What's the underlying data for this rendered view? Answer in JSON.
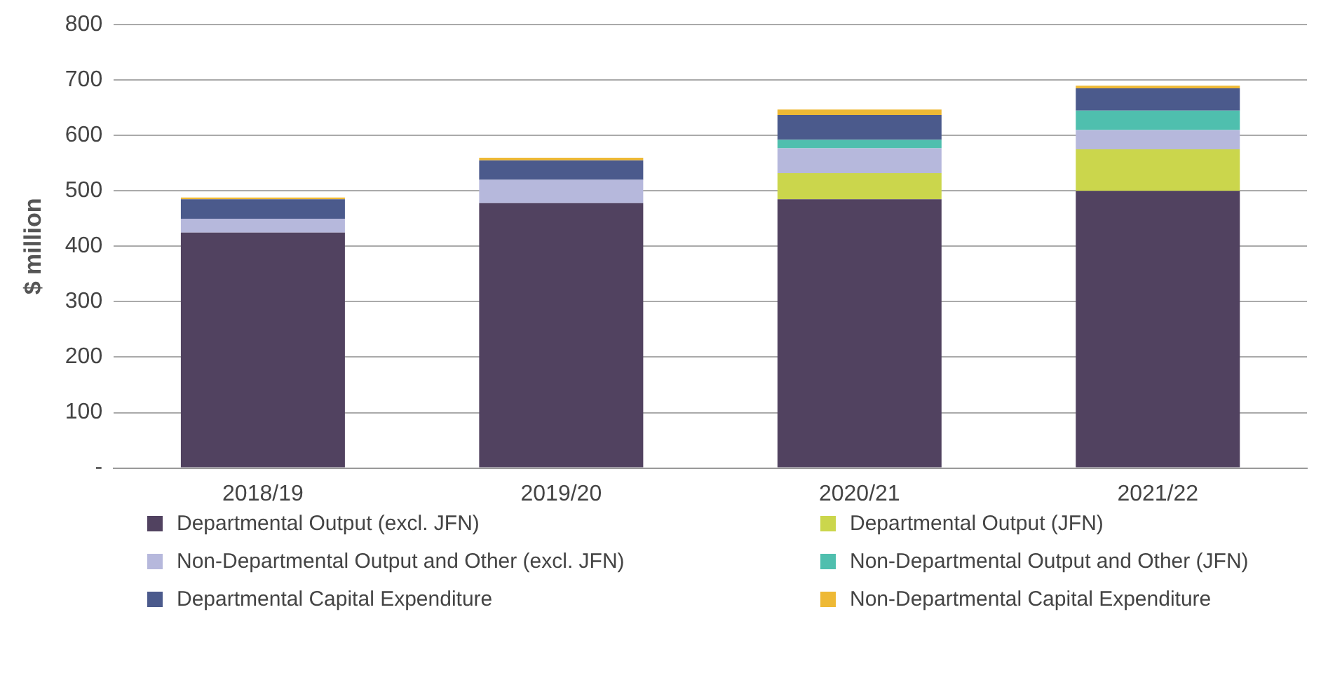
{
  "chart_data": {
    "type": "bar",
    "stacked": true,
    "ylabel": "$ million",
    "categories": [
      "2018/19",
      "2019/20",
      "2020/21",
      "2021/22"
    ],
    "series": [
      {
        "name": "Departmental Output (excl. JFN)",
        "color": "#514260",
        "values": [
          425,
          478,
          485,
          500
        ]
      },
      {
        "name": "Departmental Output (JFN)",
        "color": "#cbd64c",
        "values": [
          0,
          0,
          47,
          75
        ]
      },
      {
        "name": "Non-Departmental Output and Other (excl. JFN)",
        "color": "#b6b8dc",
        "values": [
          25,
          42,
          45,
          35
        ]
      },
      {
        "name": "Non-Departmental Output and Other (JFN)",
        "color": "#4fbfae",
        "values": [
          0,
          0,
          15,
          35
        ]
      },
      {
        "name": "Departmental Capital Expenditure",
        "color": "#4b5a8c",
        "values": [
          35,
          35,
          45,
          40
        ]
      },
      {
        "name": "Non-Departmental Capital Expenditure",
        "color": "#eeb935",
        "values": [
          3,
          5,
          10,
          5
        ]
      }
    ],
    "ylim": [
      0,
      800
    ],
    "yticks": [
      {
        "value": 0,
        "label": "-"
      },
      100,
      200,
      300,
      400,
      500,
      600,
      700,
      800
    ],
    "grid": "y",
    "legend": "bottom"
  }
}
